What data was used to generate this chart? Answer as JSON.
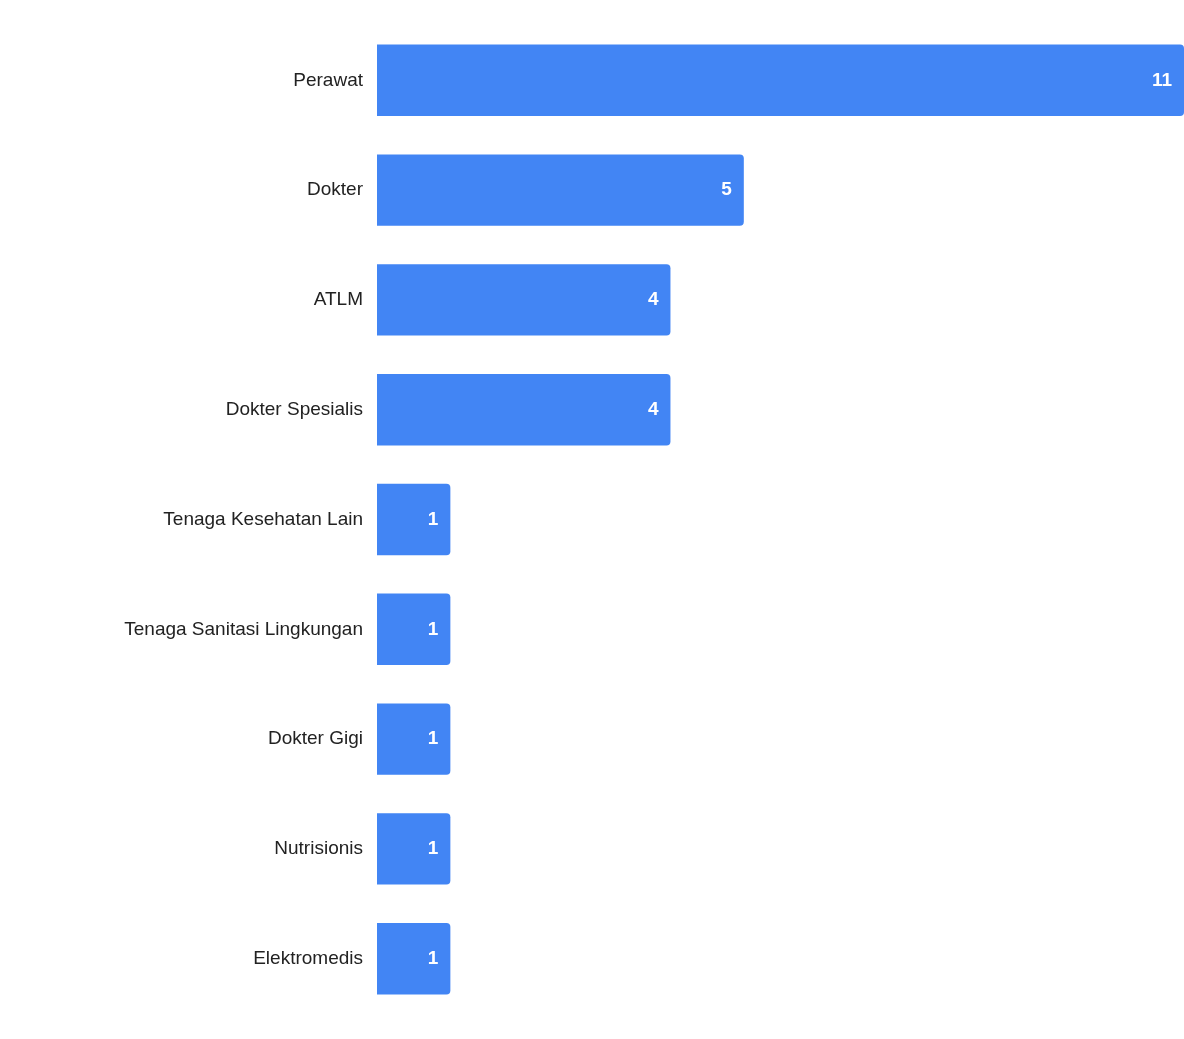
{
  "chart_data": {
    "type": "bar",
    "orientation": "horizontal",
    "categories": [
      "Perawat",
      "Dokter",
      "ATLM",
      "Dokter Spesialis",
      "Tenaga Kesehatan Lain",
      "Tenaga Sanitasi Lingkungan",
      "Dokter Gigi",
      "Nutrisionis",
      "Elektromedis"
    ],
    "values": [
      11,
      5,
      4,
      4,
      1,
      1,
      1,
      1,
      1
    ],
    "color": "#4285f4",
    "data_labels": true,
    "grid": false,
    "legend": false
  }
}
